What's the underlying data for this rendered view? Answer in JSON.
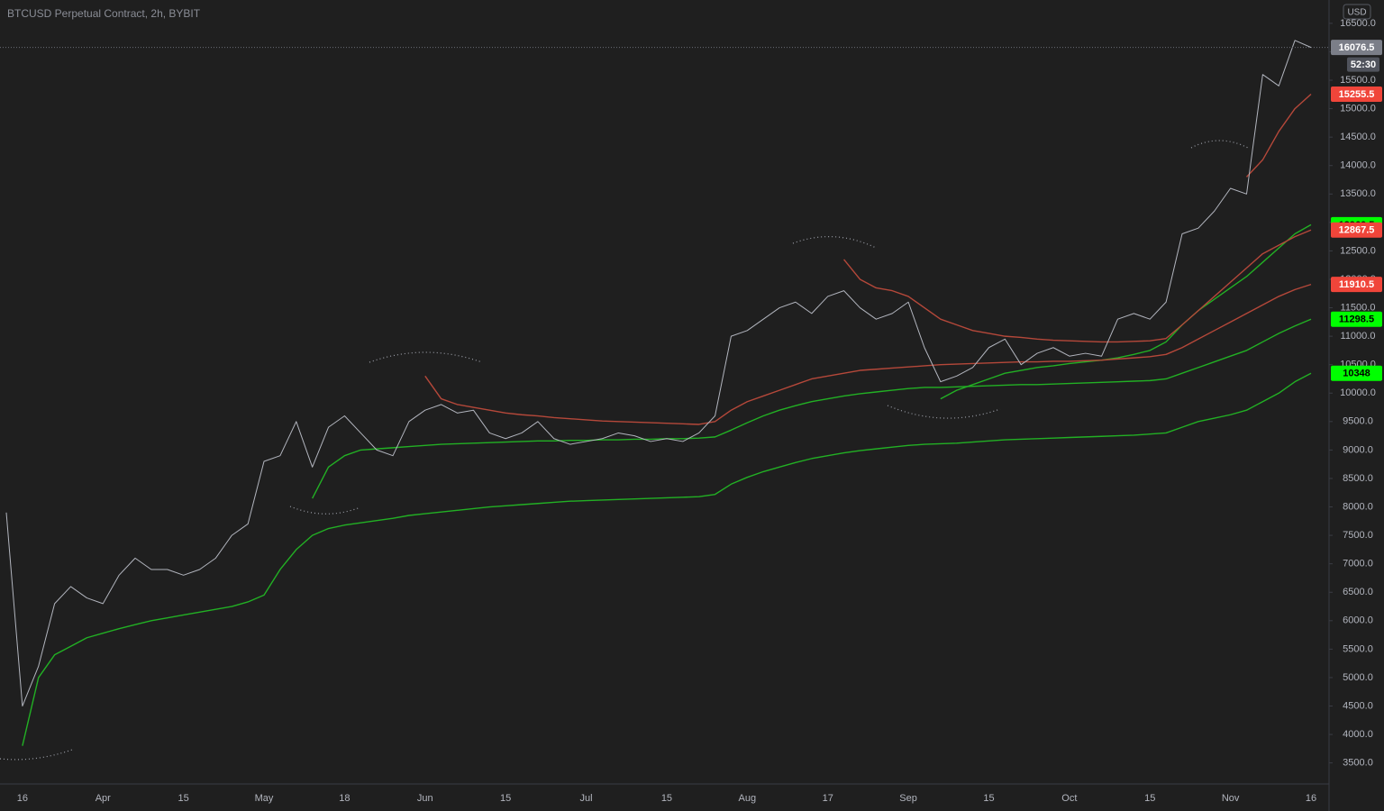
{
  "chart_data": {
    "type": "line",
    "title": "BTCUSD Perpetual Contract, 2h, BYBIT",
    "currency": "USD",
    "countdown": "52:30",
    "categories": [
      null,
      "16",
      null,
      null,
      null,
      null,
      "Apr",
      null,
      null,
      null,
      null,
      "15",
      null,
      null,
      null,
      null,
      "May",
      null,
      null,
      null,
      null,
      "18",
      null,
      null,
      null,
      null,
      "Jun",
      null,
      null,
      null,
      null,
      "15",
      null,
      null,
      null,
      null,
      "Jul",
      null,
      null,
      null,
      null,
      "15",
      null,
      null,
      null,
      null,
      "Aug",
      null,
      null,
      null,
      null,
      "17",
      null,
      null,
      null,
      null,
      "Sep",
      null,
      null,
      null,
      null,
      "15",
      null,
      null,
      null,
      null,
      "Oct",
      null,
      null,
      null,
      null,
      "15",
      null,
      null,
      null,
      null,
      "Nov",
      null,
      null,
      null,
      null,
      "16"
    ],
    "ylim": [
      3130,
      16910
    ],
    "yticks": [
      {
        "value": 3500,
        "label": "3500.0"
      },
      {
        "value": 4000,
        "label": "4000.0"
      },
      {
        "value": 4500,
        "label": "4500.0"
      },
      {
        "value": 5000,
        "label": "5000.0"
      },
      {
        "value": 5500,
        "label": "5500.0"
      },
      {
        "value": 6000,
        "label": "6000.0"
      },
      {
        "value": 6500,
        "label": "6500.0"
      },
      {
        "value": 7000,
        "label": "7000.0"
      },
      {
        "value": 7500,
        "label": "7500.0"
      },
      {
        "value": 8000,
        "label": "8000.0"
      },
      {
        "value": 8500,
        "label": "8500.0"
      },
      {
        "value": 9000,
        "label": "9000.0"
      },
      {
        "value": 9500,
        "label": "9500.0"
      },
      {
        "value": 10000,
        "label": "10000.0"
      },
      {
        "value": 10500,
        "label": "10500.0"
      },
      {
        "value": 11000,
        "label": "11000.0"
      },
      {
        "value": 11500,
        "label": "11500.0"
      },
      {
        "value": 12000,
        "label": "12000.0"
      },
      {
        "value": 12500,
        "label": "12500.0"
      },
      {
        "value": 13000,
        "label": "13000.0"
      },
      {
        "value": 13500,
        "label": "13500.0"
      },
      {
        "value": 14000,
        "label": "14000.0"
      },
      {
        "value": 14500,
        "label": "14500.0"
      },
      {
        "value": 15000,
        "label": "15000.0"
      },
      {
        "value": 15500,
        "label": "15500.0"
      },
      {
        "value": 16000,
        "label": "16000.0"
      },
      {
        "value": 16500,
        "label": "16500.0"
      }
    ],
    "grid": false,
    "series": [
      {
        "color": "#b2b5be",
        "label_color": "#7b7e88",
        "current": true,
        "values": [
          7900,
          4500,
          5200,
          6300,
          6600,
          6400,
          6300,
          6800,
          7100,
          6900,
          6900,
          6800,
          6900,
          7100,
          7500,
          7700,
          8800,
          8900,
          9500,
          8700,
          9400,
          9600,
          9300,
          9000,
          8900,
          9500,
          9700,
          9800,
          9650,
          9700,
          9300,
          9200,
          9300,
          9500,
          9200,
          9100,
          9150,
          9200,
          9300,
          9250,
          9150,
          9200,
          9150,
          9300,
          9600,
          11000,
          11100,
          11300,
          11500,
          11600,
          11400,
          11700,
          11800,
          11500,
          11300,
          11400,
          11600,
          10800,
          10200,
          10300,
          10450,
          10800,
          10950,
          10500,
          10700,
          10800,
          10650,
          10700,
          10650,
          11300,
          11400,
          11300,
          11600,
          12800,
          12900,
          13200,
          13600,
          13500,
          15600,
          15400,
          16200,
          16076.5
        ]
      },
      {
        "color": "#22b024",
        "label_color": "#00ff00",
        "values": [
          null,
          3800,
          5000,
          5400,
          5550,
          5700,
          5780,
          5860,
          5930,
          6000,
          6050,
          6100,
          6150,
          6200,
          6250,
          6330,
          6450,
          6900,
          7250,
          7500,
          7620,
          7680,
          7720,
          7760,
          7800,
          7850,
          7880,
          7910,
          7940,
          7970,
          8000,
          8020,
          8040,
          8060,
          8080,
          8100,
          8110,
          8120,
          8130,
          8140,
          8150,
          8160,
          8170,
          8180,
          8220,
          8400,
          8520,
          8620,
          8700,
          8780,
          8850,
          8900,
          8950,
          8990,
          9020,
          9050,
          9080,
          9100,
          9110,
          9120,
          9140,
          9160,
          9180,
          9190,
          9200,
          9210,
          9220,
          9230,
          9240,
          9250,
          9260,
          9280,
          9300,
          9400,
          9500,
          9560,
          9620,
          9700,
          9850,
          10000,
          10200,
          10348.0
        ]
      },
      {
        "color": "#22b024",
        "label_color": "#00ff00",
        "values": [
          null,
          null,
          null,
          null,
          null,
          null,
          null,
          null,
          null,
          null,
          null,
          null,
          null,
          null,
          null,
          null,
          null,
          null,
          null,
          8150,
          8700,
          8900,
          9000,
          9020,
          9040,
          9060,
          9080,
          9100,
          9110,
          9120,
          9130,
          9140,
          9150,
          9160,
          9160,
          9170,
          9170,
          9180,
          9180,
          9190,
          9190,
          9200,
          9200,
          9210,
          9230,
          9350,
          9480,
          9600,
          9700,
          9780,
          9850,
          9900,
          9950,
          9990,
          10020,
          10050,
          10080,
          10100,
          10100,
          10110,
          10120,
          10130,
          10140,
          10150,
          10150,
          10160,
          10170,
          10180,
          10190,
          10200,
          10210,
          10220,
          10250,
          10350,
          10450,
          10550,
          10650,
          10750,
          10900,
          11050,
          11180,
          11298.5
        ]
      },
      {
        "color": "#22b024",
        "label_color": "#00ff00",
        "values": [
          null,
          null,
          null,
          null,
          null,
          null,
          null,
          null,
          null,
          null,
          null,
          null,
          null,
          null,
          null,
          null,
          null,
          null,
          null,
          null,
          null,
          null,
          null,
          null,
          null,
          null,
          null,
          null,
          null,
          null,
          null,
          null,
          null,
          null,
          null,
          null,
          null,
          null,
          null,
          null,
          null,
          null,
          null,
          null,
          null,
          null,
          null,
          null,
          null,
          null,
          null,
          null,
          null,
          null,
          null,
          null,
          null,
          null,
          9900,
          10050,
          10150,
          10250,
          10350,
          10400,
          10450,
          10480,
          10520,
          10550,
          10580,
          10620,
          10680,
          10750,
          10900,
          11200,
          11450,
          11650,
          11850,
          12050,
          12300,
          12550,
          12800,
          12960.5
        ]
      },
      {
        "color": "#b5483a",
        "label_color": "#f0453a",
        "values": [
          null,
          null,
          null,
          null,
          null,
          null,
          null,
          null,
          null,
          null,
          null,
          null,
          null,
          null,
          null,
          null,
          null,
          null,
          null,
          null,
          null,
          null,
          null,
          null,
          null,
          null,
          10300,
          9900,
          9800,
          9750,
          9700,
          9650,
          9620,
          9600,
          9570,
          9550,
          9530,
          9510,
          9500,
          9490,
          9480,
          9470,
          9460,
          9450,
          9500,
          9700,
          9850,
          9950,
          10050,
          10150,
          10250,
          10300,
          10350,
          10400,
          10420,
          10440,
          10460,
          10480,
          10500,
          10510,
          10520,
          10530,
          10540,
          10550,
          10550,
          10560,
          10560,
          10570,
          10580,
          10600,
          10620,
          10640,
          10680,
          10800,
          10950,
          11100,
          11250,
          11400,
          11550,
          11700,
          11820,
          11910.5
        ]
      },
      {
        "color": "#b5483a",
        "label_color": "#f0453a",
        "values": [
          null,
          null,
          null,
          null,
          null,
          null,
          null,
          null,
          null,
          null,
          null,
          null,
          null,
          null,
          null,
          null,
          null,
          null,
          null,
          null,
          null,
          null,
          null,
          null,
          null,
          null,
          null,
          null,
          null,
          null,
          null,
          null,
          null,
          null,
          null,
          null,
          null,
          null,
          null,
          null,
          null,
          null,
          null,
          null,
          null,
          null,
          null,
          null,
          null,
          null,
          null,
          null,
          12350,
          12000,
          11850,
          11800,
          11700,
          11500,
          11300,
          11200,
          11100,
          11050,
          11000,
          10980,
          10950,
          10930,
          10920,
          10910,
          10900,
          10900,
          10910,
          10920,
          10960,
          11200,
          11450,
          11700,
          11950,
          12200,
          12450,
          12600,
          12750,
          12867.5
        ]
      },
      {
        "color": "#b5483a",
        "label_color": "#f0453a",
        "values": [
          null,
          null,
          null,
          null,
          null,
          null,
          null,
          null,
          null,
          null,
          null,
          null,
          null,
          null,
          null,
          null,
          null,
          null,
          null,
          null,
          null,
          null,
          null,
          null,
          null,
          null,
          null,
          null,
          null,
          null,
          null,
          null,
          null,
          null,
          null,
          null,
          null,
          null,
          null,
          null,
          null,
          null,
          null,
          null,
          null,
          null,
          null,
          null,
          null,
          null,
          null,
          null,
          null,
          null,
          null,
          null,
          null,
          null,
          null,
          null,
          null,
          null,
          null,
          null,
          null,
          null,
          null,
          null,
          null,
          null,
          null,
          null,
          null,
          null,
          null,
          null,
          null,
          13800,
          14100,
          14600,
          15000,
          15255.5
        ]
      }
    ]
  }
}
